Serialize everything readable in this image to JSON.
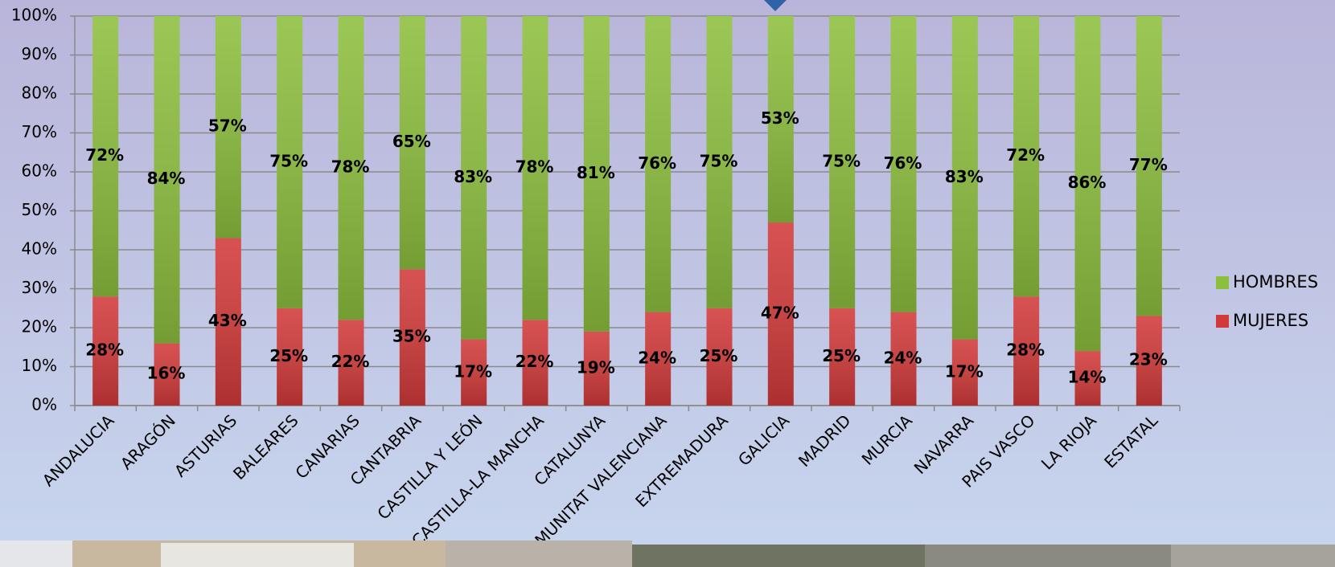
{
  "chart_data": {
    "type": "stacked_bar",
    "categories": [
      "ANDALUCIA",
      "ARAGÓN",
      "ASTURIAS",
      "BALEARES",
      "CANARIAS",
      "CANTABRIA",
      "CASTILLA Y LEÓN",
      "CASTILLA-LA MANCHA",
      "CATALUNYA",
      "COMUNITAT VALENCIANA",
      "EXTREMADURA",
      "GALICIA",
      "MADRID",
      "MURCIA",
      "NAVARRA",
      "PAIS VASCO",
      "LA RIOJA",
      "ESTATAL"
    ],
    "series": [
      {
        "name": "MUJERES",
        "color": "#d23a3a",
        "values": [
          28,
          16,
          43,
          25,
          22,
          35,
          17,
          22,
          19,
          24,
          25,
          47,
          25,
          24,
          17,
          28,
          14,
          23
        ],
        "value_labels": [
          "28%",
          "16%",
          "43%",
          "25%",
          "22%",
          "35%",
          "17%",
          "22%",
          "19%",
          "24%",
          "25%",
          "47%",
          "25%",
          "24%",
          "17%",
          "28%",
          "14%",
          "23%"
        ]
      },
      {
        "name": "HOMBRES",
        "color": "#8dbf3e",
        "values": [
          72,
          84,
          57,
          75,
          78,
          65,
          83,
          78,
          81,
          76,
          75,
          53,
          75,
          76,
          83,
          72,
          86,
          77
        ],
        "value_labels": [
          "72%",
          "84%",
          "57%",
          "75%",
          "78%",
          "65%",
          "83%",
          "78%",
          "81%",
          "76%",
          "75%",
          "53%",
          "75%",
          "76%",
          "83%",
          "72%",
          "86%",
          "77%"
        ]
      }
    ],
    "ylim": [
      0,
      100
    ],
    "yticks": [
      {
        "value": 0,
        "label": "0%"
      },
      {
        "value": 10,
        "label": "10%"
      },
      {
        "value": 20,
        "label": "20%"
      },
      {
        "value": 30,
        "label": "30%"
      },
      {
        "value": 40,
        "label": "40%"
      },
      {
        "value": 50,
        "label": "50%"
      },
      {
        "value": 60,
        "label": "60%"
      },
      {
        "value": 70,
        "label": "70%"
      },
      {
        "value": 80,
        "label": "80%"
      },
      {
        "value": 90,
        "label": "90%"
      },
      {
        "value": 100,
        "label": "100%"
      }
    ],
    "grid": true,
    "legend": "right"
  }
}
